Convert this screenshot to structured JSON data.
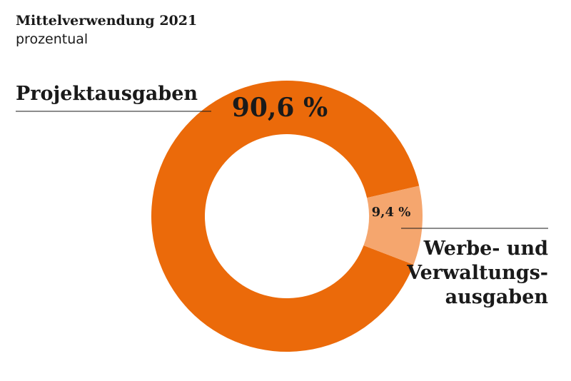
{
  "chart_data": {
    "type": "pie",
    "title": "Mittelverwendung 2021",
    "subtitle": "prozentual",
    "categories": [
      "Projektausgaben",
      "Werbe- und Verwaltungsausgaben"
    ],
    "values": [
      90.6,
      9.4
    ],
    "value_labels": [
      "90,6 %",
      "9,4 %"
    ],
    "category_lines": [
      [
        "Projektausgaben"
      ],
      [
        "Werbe- und",
        "Verwaltungs-",
        "ausgaben"
      ]
    ],
    "colors": [
      "#eb6a0a",
      "#f5a66e"
    ],
    "donut": true
  }
}
